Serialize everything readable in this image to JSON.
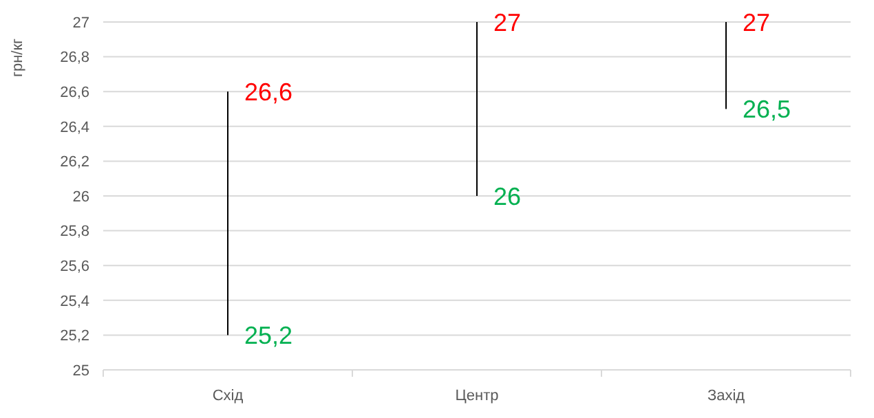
{
  "chart_data": {
    "type": "bar",
    "ylabel": "грн/кг",
    "categories": [
      "Схід",
      "Центр",
      "Захід"
    ],
    "ylim": [
      25,
      27
    ],
    "yticks": [
      25,
      {
        "value": 25.2,
        "label": "25,2"
      },
      {
        "value": 25.4,
        "label": "25,4"
      },
      {
        "value": 25.6,
        "label": "25,6"
      },
      {
        "value": 25.8,
        "label": "25,8"
      },
      26,
      {
        "value": 26.2,
        "label": "26,2"
      },
      {
        "value": 26.4,
        "label": "26,4"
      },
      {
        "value": 26.6,
        "label": "26,6"
      },
      {
        "value": 26.8,
        "label": "26,8"
      },
      27
    ],
    "grid": "y",
    "series": [
      {
        "color": "#000000",
        "base": [
          25.2,
          26,
          26.5
        ],
        "values": [
          1.4,
          1,
          0.5
        ]
      }
    ],
    "annotations": [
      {
        "text": "26,6",
        "x": "Схід",
        "y": 26.6
      },
      {
        "text": "27",
        "x": "Центр",
        "y": 27
      },
      {
        "text": "27",
        "x": "Захід",
        "y": 27
      },
      {
        "text": "25,2",
        "x": "Схід",
        "y": 25.2
      },
      {
        "text": "26",
        "x": "Центр",
        "y": 26
      },
      {
        "text": "26,5",
        "x": "Захід",
        "y": 26.5
      }
    ]
  }
}
